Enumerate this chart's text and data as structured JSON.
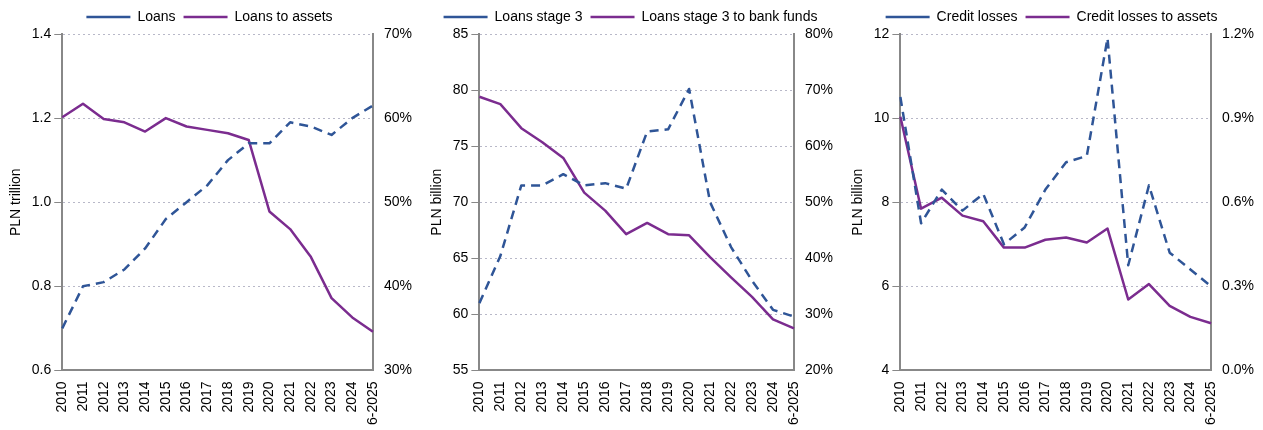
{
  "chart_data": [
    {
      "type": "line",
      "categories": [
        "2010",
        "2011",
        "2012",
        "2013",
        "2014",
        "2015",
        "2016",
        "2017",
        "2018",
        "2019",
        "2020",
        "2021",
        "2022",
        "2023",
        "2024",
        "6-2025"
      ],
      "ylabel": "PLN trillion",
      "ylim": [
        0.6,
        1.4
      ],
      "yticks": [
        {
          "value": 0.6,
          "label": "0.6"
        },
        {
          "value": 0.8,
          "label": "0.8"
        },
        {
          "value": 1.0,
          "label": "1.0"
        },
        {
          "value": 1.2,
          "label": "1.2"
        },
        {
          "value": 1.4,
          "label": "1.4"
        }
      ],
      "y2lim": [
        30,
        70
      ],
      "y2ticks": [
        {
          "value": 30,
          "label": "30%"
        },
        {
          "value": 40,
          "label": "40%"
        },
        {
          "value": 50,
          "label": "50%"
        },
        {
          "value": 60,
          "label": "60%"
        },
        {
          "value": 70,
          "label": "70%"
        }
      ],
      "grid": "y",
      "legend": "top",
      "marker": "none",
      "series": [
        {
          "name": "Loans",
          "color": "#2f5597",
          "line_style": "dashed",
          "values": [
            0.7,
            0.8,
            0.81,
            0.84,
            0.89,
            0.96,
            1.0,
            1.04,
            1.1,
            1.14,
            1.14,
            1.19,
            1.18,
            1.16,
            1.2,
            1.23
          ]
        },
        {
          "name": "Loans to assets",
          "color": "#7b2c8f",
          "line_style": "solid",
          "axis": "y2",
          "values": [
            60.1,
            61.7,
            59.9,
            59.5,
            58.4,
            60.0,
            59.0,
            58.6,
            58.2,
            57.4,
            48.9,
            46.8,
            43.5,
            38.6,
            36.3,
            34.6
          ]
        }
      ]
    },
    {
      "type": "line",
      "categories": [
        "2010",
        "2011",
        "2012",
        "2013",
        "2014",
        "2015",
        "2016",
        "2017",
        "2018",
        "2019",
        "2020",
        "2021",
        "2022",
        "2023",
        "2024",
        "6-2025"
      ],
      "ylabel": "PLN billion",
      "ylim": [
        55,
        85
      ],
      "yticks": [
        55,
        60,
        65,
        70,
        75,
        80,
        85
      ],
      "y2lim": [
        20,
        80
      ],
      "y2ticks": [
        {
          "value": 20,
          "label": "20%"
        },
        {
          "value": 30,
          "label": "30%"
        },
        {
          "value": 40,
          "label": "40%"
        },
        {
          "value": 50,
          "label": "50%"
        },
        {
          "value": 60,
          "label": "60%"
        },
        {
          "value": 70,
          "label": "70%"
        },
        {
          "value": 80,
          "label": "80%"
        }
      ],
      "grid": "y",
      "legend": "top",
      "marker": "none",
      "series": [
        {
          "name": "Loans stage 3",
          "color": "#2f5597",
          "line_style": "dashed",
          "values": [
            61.0,
            65.2,
            71.5,
            71.5,
            72.5,
            71.5,
            71.7,
            71.2,
            76.3,
            76.5,
            80.1,
            70.0,
            66.0,
            63.0,
            60.4,
            59.8
          ]
        },
        {
          "name": "Loans stage 3 to bank funds",
          "color": "#7b2c8f",
          "line_style": "solid",
          "axis": "y2",
          "values": [
            68.8,
            67.5,
            63.2,
            60.7,
            57.9,
            51.7,
            48.5,
            44.3,
            46.3,
            44.3,
            44.1,
            40.2,
            36.6,
            33.1,
            29.1,
            27.5
          ]
        }
      ]
    },
    {
      "type": "line",
      "categories": [
        "2010",
        "2011",
        "2012",
        "2013",
        "2014",
        "2015",
        "2016",
        "2017",
        "2018",
        "2019",
        "2020",
        "2021",
        "2022",
        "2023",
        "2024",
        "6-2025"
      ],
      "ylabel": "PLN billion",
      "ylim": [
        4,
        12
      ],
      "yticks": [
        4,
        6,
        8,
        10,
        12
      ],
      "y2lim": [
        0,
        1.2
      ],
      "y2ticks": [
        {
          "value": 0,
          "label": "0.0%"
        },
        {
          "value": 0.3,
          "label": "0.3%"
        },
        {
          "value": 0.6,
          "label": "0.6%"
        },
        {
          "value": 0.9,
          "label": "0.9%"
        },
        {
          "value": 1.2,
          "label": "1.2%"
        }
      ],
      "grid": "y",
      "legend": "top",
      "marker": "none",
      "series": [
        {
          "name": "Credit losses",
          "color": "#2f5597",
          "line_style": "dashed",
          "values": [
            10.5,
            7.5,
            8.3,
            7.8,
            8.2,
            7.0,
            7.4,
            8.3,
            8.95,
            9.1,
            11.9,
            6.5,
            8.4,
            6.8,
            6.4,
            6.0
          ]
        },
        {
          "name": "Credit losses to assets",
          "color": "#7b2c8f",
          "line_style": "solid",
          "axis": "y2",
          "values": [
            0.905,
            0.577,
            0.616,
            0.552,
            0.532,
            0.438,
            0.438,
            0.466,
            0.474,
            0.456,
            0.506,
            0.253,
            0.308,
            0.23,
            0.191,
            0.168
          ]
        }
      ]
    }
  ]
}
